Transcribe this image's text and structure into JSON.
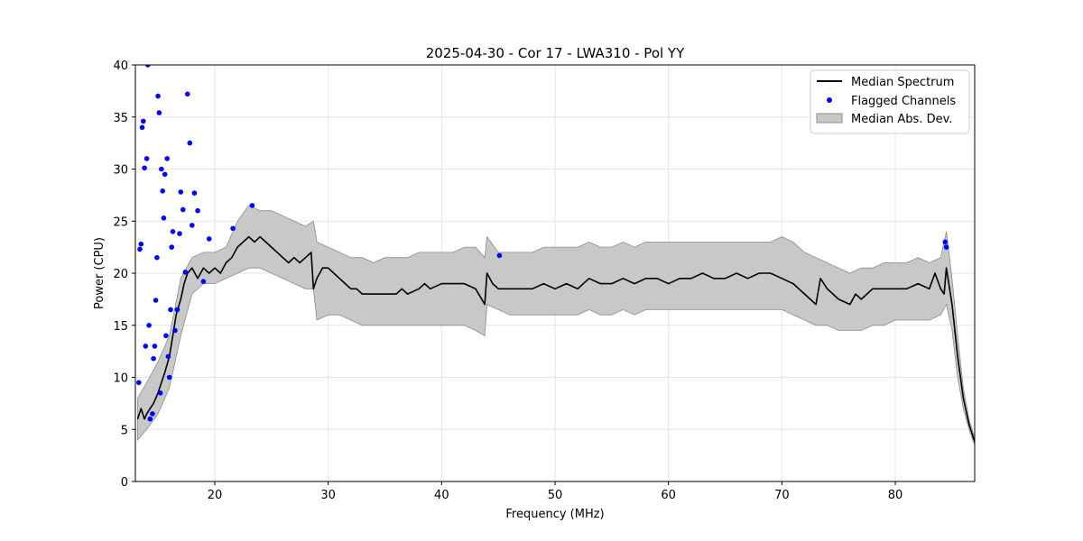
{
  "chart_data": {
    "type": "line",
    "title": "2025-04-30 - Cor 17 - LWA310 - Pol YY",
    "xlabel": "Frequency (MHz)",
    "ylabel": "Power (CPU)",
    "xlim": [
      13,
      87
    ],
    "ylim": [
      0,
      40
    ],
    "xticks": [
      20,
      30,
      40,
      50,
      60,
      70,
      80
    ],
    "yticks": [
      0,
      5,
      10,
      15,
      20,
      25,
      30,
      35,
      40
    ],
    "xtick_labels": [
      "20",
      "30",
      "40",
      "50",
      "60",
      "70",
      "80"
    ],
    "ytick_labels": [
      "0",
      "5",
      "10",
      "15",
      "20",
      "25",
      "30",
      "35",
      "40"
    ],
    "grid": true,
    "legend_position": "top-right",
    "legend": [
      "Median Spectrum",
      "Flagged Channels",
      "Median Abs. Dev."
    ],
    "colors": {
      "median": "#000000",
      "flagged": "#0000ff",
      "mad_fill": "#c8c8c8",
      "mad_edge": "#8c8c8c",
      "grid": "#e6e6e6"
    },
    "series": [
      {
        "name": "Median Spectrum",
        "x": [
          13.2,
          13.5,
          13.8,
          14.0,
          14.3,
          14.6,
          15.0,
          15.3,
          15.6,
          16.0,
          16.3,
          16.6,
          17.0,
          17.3,
          17.6,
          18.0,
          18.5,
          19.0,
          19.5,
          20.0,
          20.5,
          21.0,
          21.5,
          22.0,
          22.5,
          23.0,
          23.5,
          24.0,
          24.5,
          25.0,
          25.5,
          26.0,
          26.5,
          27.0,
          27.5,
          28.0,
          28.5,
          28.7,
          29.0,
          29.5,
          30.0,
          30.5,
          31.0,
          31.5,
          32.0,
          32.5,
          33.0,
          33.5,
          34.0,
          35.0,
          36.0,
          36.5,
          37.0,
          38.0,
          38.5,
          39.0,
          40.0,
          41.0,
          42.0,
          43.0,
          43.8,
          44.0,
          44.5,
          45.0,
          45.5,
          46.0,
          47.0,
          48.0,
          49.0,
          50.0,
          51.0,
          52.0,
          53.0,
          54.0,
          55.0,
          56.0,
          57.0,
          58.0,
          59.0,
          60.0,
          61.0,
          62.0,
          63.0,
          64.0,
          65.0,
          66.0,
          67.0,
          68.0,
          69.0,
          70.0,
          71.0,
          72.0,
          73.0,
          73.4,
          74.0,
          75.0,
          76.0,
          76.5,
          77.0,
          77.5,
          78.0,
          79.0,
          80.0,
          81.0,
          82.0,
          83.0,
          83.5,
          84.0,
          84.3,
          84.5,
          85.0,
          85.5,
          86.0,
          86.5,
          87.0
        ],
        "y": [
          6.0,
          7.0,
          6.0,
          6.5,
          7.0,
          7.5,
          8.5,
          9.5,
          10.5,
          12.0,
          14.0,
          16.0,
          17.5,
          19.0,
          20.0,
          20.5,
          19.5,
          20.5,
          20.0,
          20.5,
          20.0,
          21.0,
          21.5,
          22.5,
          23.0,
          23.5,
          23.0,
          23.5,
          23.0,
          22.5,
          22.0,
          21.5,
          21.0,
          21.5,
          21.0,
          21.5,
          22.0,
          18.5,
          19.5,
          20.5,
          20.5,
          20.0,
          19.5,
          19.0,
          18.5,
          18.5,
          18.0,
          18.0,
          18.0,
          18.0,
          18.0,
          18.5,
          18.0,
          18.5,
          19.0,
          18.5,
          19.0,
          19.0,
          19.0,
          18.5,
          17.0,
          20.0,
          19.0,
          18.5,
          18.5,
          18.5,
          18.5,
          18.5,
          19.0,
          18.5,
          19.0,
          18.5,
          19.5,
          19.0,
          19.0,
          19.5,
          19.0,
          19.5,
          19.5,
          19.0,
          19.5,
          19.5,
          20.0,
          19.5,
          19.5,
          20.0,
          19.5,
          20.0,
          20.0,
          19.5,
          19.0,
          18.0,
          17.0,
          19.5,
          18.5,
          17.5,
          17.0,
          18.0,
          17.5,
          18.0,
          18.5,
          18.5,
          18.5,
          18.5,
          19.0,
          18.5,
          20.0,
          18.5,
          18.0,
          20.5,
          17.0,
          12.0,
          8.0,
          5.5,
          3.8
        ]
      },
      {
        "name": "Median Abs. Dev.",
        "x": [
          13.2,
          14.0,
          15.0,
          16.0,
          17.0,
          18.0,
          19.0,
          20.0,
          21.0,
          22.0,
          23.0,
          24.0,
          25.0,
          26.0,
          27.0,
          28.0,
          28.7,
          29.0,
          30.0,
          31.0,
          32.0,
          33.0,
          34.0,
          35.0,
          36.0,
          37.0,
          38.0,
          39.0,
          40.0,
          41.0,
          42.0,
          43.0,
          43.8,
          44.0,
          45.0,
          46.0,
          47.0,
          48.0,
          49.0,
          50.0,
          51.0,
          52.0,
          53.0,
          54.0,
          55.0,
          56.0,
          57.0,
          58.0,
          59.0,
          60.0,
          61.0,
          62.0,
          63.0,
          64.0,
          65.0,
          66.0,
          67.0,
          68.0,
          69.0,
          70.0,
          71.0,
          72.0,
          73.0,
          74.0,
          75.0,
          76.0,
          77.0,
          78.0,
          79.0,
          80.0,
          81.0,
          82.0,
          83.0,
          84.0,
          84.5,
          85.0,
          85.5,
          86.0,
          86.5,
          87.0
        ],
        "upper": [
          8.0,
          9.5,
          11.5,
          14.0,
          19.5,
          21.5,
          22.0,
          22.0,
          22.5,
          25.0,
          26.5,
          26.0,
          26.0,
          25.5,
          25.0,
          24.5,
          25.0,
          23.0,
          22.5,
          22.0,
          21.5,
          21.5,
          21.0,
          21.5,
          21.5,
          21.5,
          22.0,
          22.0,
          22.0,
          22.0,
          22.5,
          22.5,
          21.5,
          23.5,
          22.0,
          22.0,
          22.0,
          22.0,
          22.5,
          22.5,
          22.5,
          22.5,
          23.0,
          22.5,
          22.5,
          23.0,
          22.5,
          23.0,
          23.0,
          23.0,
          23.0,
          23.0,
          23.0,
          23.0,
          23.0,
          23.0,
          23.0,
          23.0,
          23.0,
          23.5,
          23.0,
          22.0,
          21.5,
          21.0,
          20.5,
          20.0,
          20.5,
          20.5,
          21.0,
          21.0,
          21.0,
          21.5,
          21.0,
          21.5,
          24.0,
          19.5,
          14.0,
          9.0,
          6.0,
          4.2
        ],
        "lower": [
          4.0,
          5.0,
          6.5,
          9.0,
          14.0,
          18.0,
          19.0,
          19.0,
          19.5,
          20.0,
          20.5,
          20.5,
          20.0,
          19.5,
          19.0,
          18.5,
          18.5,
          15.5,
          16.0,
          16.0,
          15.5,
          15.0,
          15.0,
          15.0,
          15.0,
          15.0,
          15.0,
          15.0,
          15.0,
          15.0,
          15.0,
          14.5,
          14.0,
          17.0,
          16.5,
          16.0,
          16.0,
          16.0,
          16.0,
          16.0,
          16.0,
          16.0,
          16.5,
          16.0,
          16.0,
          16.5,
          16.0,
          16.5,
          16.5,
          16.5,
          16.5,
          16.5,
          16.5,
          16.5,
          16.5,
          16.5,
          16.5,
          16.5,
          16.5,
          16.5,
          16.0,
          15.5,
          15.0,
          15.0,
          14.5,
          14.5,
          14.5,
          15.0,
          15.0,
          15.5,
          15.5,
          15.5,
          15.5,
          16.0,
          17.0,
          14.5,
          10.0,
          7.0,
          5.0,
          3.5
        ]
      },
      {
        "name": "Flagged Channels",
        "x": [
          13.3,
          13.4,
          13.5,
          13.6,
          13.7,
          13.8,
          13.9,
          14.0,
          14.1,
          14.2,
          14.3,
          14.5,
          14.6,
          14.7,
          14.8,
          14.9,
          15.0,
          15.1,
          15.2,
          15.3,
          15.4,
          15.5,
          15.6,
          15.7,
          15.8,
          15.9,
          16.0,
          16.1,
          16.2,
          16.3,
          16.5,
          16.7,
          16.9,
          17.0,
          17.2,
          17.4,
          17.6,
          17.8,
          18.0,
          18.2,
          18.5,
          19.0,
          19.5,
          21.6,
          23.3,
          45.1,
          84.4,
          84.5
        ],
        "y": [
          9.5,
          22.3,
          22.8,
          34.0,
          34.6,
          30.1,
          13.0,
          31.0,
          40.0,
          15.0,
          6.0,
          6.5,
          11.8,
          13.0,
          17.4,
          21.5,
          37.0,
          35.4,
          8.5,
          30.0,
          27.9,
          25.3,
          29.5,
          14.0,
          31.0,
          12.0,
          10.0,
          16.5,
          22.5,
          24.0,
          14.5,
          16.5,
          23.8,
          27.8,
          26.1,
          20.1,
          37.2,
          32.5,
          24.6,
          27.7,
          26.0,
          19.2,
          23.3,
          24.3,
          26.5,
          21.7,
          23.0,
          22.5
        ]
      }
    ]
  }
}
